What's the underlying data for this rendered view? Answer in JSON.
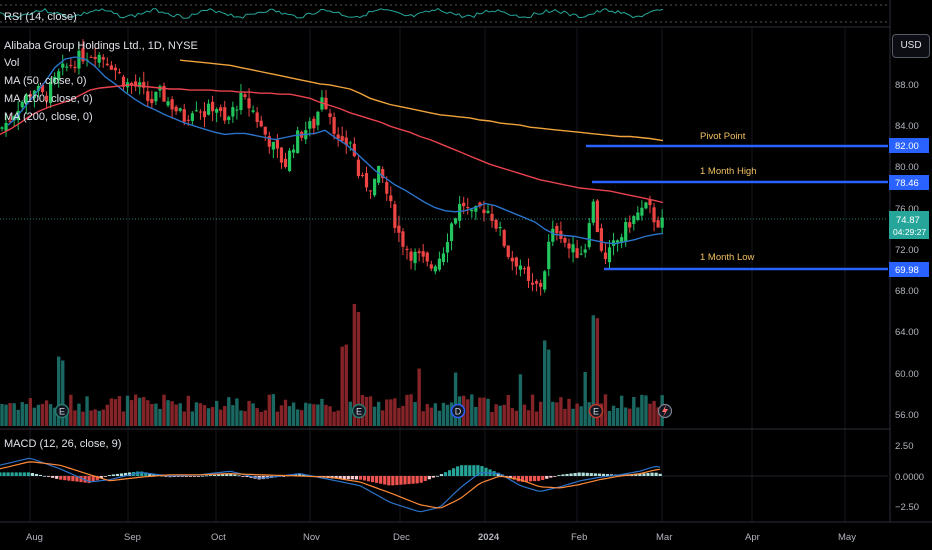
{
  "chart_data": {
    "type": "candlestick",
    "symbol_line": "Alibaba Group Holdings Ltd., 1D, NYSE",
    "indicators": {
      "rsi": "RSI (14, close)",
      "vol": "Vol",
      "ma50": "MA (50, close, 0)",
      "ma100": "MA (100, close, 0)",
      "ma200": "MA (200, close, 0)",
      "macd": "MACD (12, 26, close, 9)"
    },
    "currency": "USD",
    "price_axis": {
      "min": 54,
      "max": 93,
      "ticks": [
        "88.00",
        "84.00",
        "80.00",
        "76.00",
        "72.00",
        "68.00",
        "64.00",
        "60.00",
        "56.00"
      ]
    },
    "macd_axis": {
      "min": -3.3,
      "max": 3.3,
      "ticks": [
        "2.50",
        "0.0000",
        "−2.50"
      ]
    },
    "x_axis": {
      "labels": [
        "Aug",
        "Sep",
        "Oct",
        "Nov",
        "Dec",
        "2024",
        "Feb",
        "Mar",
        "Apr",
        "May"
      ]
    },
    "last_price": {
      "value": "74.87",
      "countdown": "04:29:27"
    },
    "levels": [
      {
        "name": "Pivot Point",
        "value": "82.00"
      },
      {
        "name": "1 Month High",
        "value": "78.46"
      },
      {
        "name": "1 Month Low",
        "value": "69.98"
      }
    ],
    "ma_series": {
      "ma50": [
        [
          8,
          84.4
        ],
        [
          15,
          85.0
        ],
        [
          25,
          86.2
        ],
        [
          35,
          87.4
        ],
        [
          45,
          88.6
        ],
        [
          55,
          90.0
        ],
        [
          65,
          90.8
        ],
        [
          75,
          91.0
        ],
        [
          85,
          90.8
        ],
        [
          95,
          90.1
        ],
        [
          105,
          89.1
        ],
        [
          115,
          88.4
        ],
        [
          125,
          87.6
        ],
        [
          135,
          86.9
        ],
        [
          145,
          86.3
        ],
        [
          155,
          85.9
        ],
        [
          165,
          85.4
        ],
        [
          175,
          85.0
        ],
        [
          185,
          84.6
        ],
        [
          195,
          84.3
        ],
        [
          205,
          84.0
        ],
        [
          215,
          83.7
        ],
        [
          225,
          83.5
        ],
        [
          235,
          83.6
        ],
        [
          245,
          83.6
        ],
        [
          255,
          83.4
        ],
        [
          265,
          83.2
        ],
        [
          275,
          83.0
        ],
        [
          285,
          83.2
        ],
        [
          295,
          83.4
        ],
        [
          305,
          83.5
        ],
        [
          315,
          83.6
        ],
        [
          325,
          83.9
        ],
        [
          335,
          83.2
        ],
        [
          345,
          82.6
        ],
        [
          355,
          81.8
        ],
        [
          365,
          80.9
        ],
        [
          375,
          80.0
        ],
        [
          385,
          79.3
        ],
        [
          395,
          78.6
        ],
        [
          405,
          78.1
        ],
        [
          415,
          77.5
        ],
        [
          425,
          76.9
        ],
        [
          435,
          76.4
        ],
        [
          445,
          76.1
        ],
        [
          455,
          76.0
        ],
        [
          465,
          76.1
        ],
        [
          475,
          76.4
        ],
        [
          485,
          76.8
        ],
        [
          495,
          76.6
        ],
        [
          505,
          76.2
        ],
        [
          515,
          75.8
        ],
        [
          525,
          75.4
        ],
        [
          535,
          75.0
        ],
        [
          545,
          74.3
        ],
        [
          555,
          73.8
        ],
        [
          565,
          73.7
        ],
        [
          575,
          73.6
        ],
        [
          585,
          73.4
        ],
        [
          595,
          73.2
        ],
        [
          605,
          73.0
        ],
        [
          615,
          72.9
        ],
        [
          625,
          73.1
        ],
        [
          635,
          73.3
        ],
        [
          645,
          73.6
        ],
        [
          655,
          73.8
        ],
        [
          663,
          73.9
        ]
      ],
      "ma100": [
        [
          0,
          83.5
        ],
        [
          10,
          84.0
        ],
        [
          20,
          84.6
        ],
        [
          30,
          85.3
        ],
        [
          40,
          85.8
        ],
        [
          50,
          86.2
        ],
        [
          60,
          86.5
        ],
        [
          70,
          86.8
        ],
        [
          80,
          87.3
        ],
        [
          90,
          87.8
        ],
        [
          100,
          88.0
        ],
        [
          110,
          88.1
        ],
        [
          120,
          88.2
        ],
        [
          130,
          88.3
        ],
        [
          140,
          88.2
        ],
        [
          150,
          88.1
        ],
        [
          160,
          88.0
        ],
        [
          170,
          87.9
        ],
        [
          180,
          87.9
        ],
        [
          190,
          87.8
        ],
        [
          200,
          87.8
        ],
        [
          210,
          87.8
        ],
        [
          220,
          87.7
        ],
        [
          230,
          87.7
        ],
        [
          240,
          87.6
        ],
        [
          250,
          87.6
        ],
        [
          260,
          87.5
        ],
        [
          270,
          87.5
        ],
        [
          280,
          87.4
        ],
        [
          290,
          87.4
        ],
        [
          300,
          87.2
        ],
        [
          310,
          87.0
        ],
        [
          320,
          86.6
        ],
        [
          330,
          86.3
        ],
        [
          340,
          86.0
        ],
        [
          350,
          85.6
        ],
        [
          360,
          85.3
        ],
        [
          370,
          85.0
        ],
        [
          380,
          84.7
        ],
        [
          390,
          84.3
        ],
        [
          400,
          84.0
        ],
        [
          410,
          83.7
        ],
        [
          420,
          83.3
        ],
        [
          430,
          83.0
        ],
        [
          440,
          82.6
        ],
        [
          450,
          82.2
        ],
        [
          460,
          81.8
        ],
        [
          470,
          81.4
        ],
        [
          480,
          81.0
        ],
        [
          490,
          80.6
        ],
        [
          500,
          80.3
        ],
        [
          510,
          80.0
        ],
        [
          520,
          79.7
        ],
        [
          530,
          79.4
        ],
        [
          540,
          79.1
        ],
        [
          550,
          78.9
        ],
        [
          560,
          78.7
        ],
        [
          570,
          78.5
        ],
        [
          580,
          78.3
        ],
        [
          590,
          78.2
        ],
        [
          600,
          78.1
        ],
        [
          610,
          78.0
        ],
        [
          620,
          77.8
        ],
        [
          630,
          77.6
        ],
        [
          640,
          77.4
        ],
        [
          650,
          77.2
        ],
        [
          663,
          76.9
        ]
      ],
      "ma200": [
        [
          180,
          90.7
        ],
        [
          190,
          90.6
        ],
        [
          200,
          90.5
        ],
        [
          210,
          90.4
        ],
        [
          220,
          90.3
        ],
        [
          230,
          90.2
        ],
        [
          240,
          90.0
        ],
        [
          250,
          89.8
        ],
        [
          260,
          89.6
        ],
        [
          270,
          89.4
        ],
        [
          280,
          89.2
        ],
        [
          290,
          89.0
        ],
        [
          300,
          88.8
        ],
        [
          310,
          88.6
        ],
        [
          320,
          88.4
        ],
        [
          330,
          88.3
        ],
        [
          340,
          88.1
        ],
        [
          350,
          87.9
        ],
        [
          360,
          87.5
        ],
        [
          370,
          87.0
        ],
        [
          380,
          86.7
        ],
        [
          390,
          86.4
        ],
        [
          400,
          86.2
        ],
        [
          410,
          86.0
        ],
        [
          420,
          85.8
        ],
        [
          430,
          85.6
        ],
        [
          440,
          85.4
        ],
        [
          450,
          85.3
        ],
        [
          460,
          85.2
        ],
        [
          470,
          85.1
        ],
        [
          480,
          84.9
        ],
        [
          490,
          84.8
        ],
        [
          500,
          84.6
        ],
        [
          510,
          84.5
        ],
        [
          520,
          84.4
        ],
        [
          530,
          84.2
        ],
        [
          540,
          84.1
        ],
        [
          550,
          84.0
        ],
        [
          560,
          83.9
        ],
        [
          570,
          83.8
        ],
        [
          580,
          83.7
        ],
        [
          590,
          83.6
        ],
        [
          600,
          83.5
        ],
        [
          610,
          83.4
        ],
        [
          620,
          83.3
        ],
        [
          630,
          83.3
        ],
        [
          640,
          83.2
        ],
        [
          650,
          83.1
        ],
        [
          663,
          82.9
        ]
      ]
    }
  }
}
